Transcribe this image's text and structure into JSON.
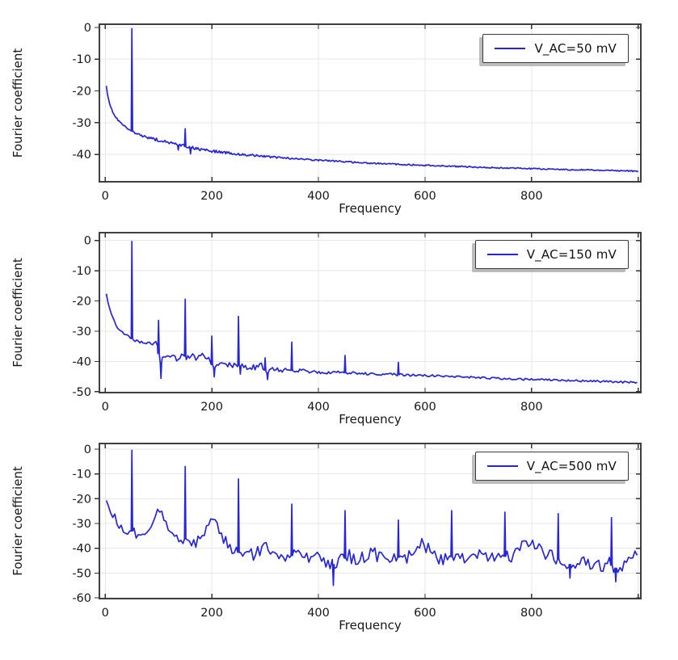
{
  "figure": {
    "background": "#ffffff",
    "ylabel_repeated_per_subplot": true
  },
  "styles": {
    "line_color": "#2626d8",
    "grid_color": "#e7e7e7",
    "frame_color": "#3f3f3f",
    "tick_color": "#333333",
    "text_color": "#171717",
    "legend_border": "#3a3a3a",
    "legend_shadow": "#919191"
  },
  "chart_data": {
    "type": "line",
    "xlabel": "Frequency",
    "ylabel": "Fourier coefficient",
    "xlim": [
      -11,
      1005
    ],
    "xticks": [
      0,
      200,
      400,
      600,
      800
    ],
    "xgrid": [
      0,
      200,
      400,
      600,
      800,
      1000
    ],
    "grid": true,
    "legend_position": "top-right",
    "charts": [
      {
        "legend": "V_AC=50 mV",
        "ylim": [
          -48.6,
          1.0
        ],
        "yticks": [
          0,
          -10,
          -20,
          -30,
          -40
        ],
        "step": 2,
        "seed": 3,
        "baseline": [
          [
            1,
            -17
          ],
          [
            4,
            -21
          ],
          [
            8,
            -24
          ],
          [
            15,
            -27
          ],
          [
            25,
            -29.5
          ],
          [
            35,
            -31
          ],
          [
            48,
            -32.4
          ],
          [
            55,
            -33.2
          ],
          [
            70,
            -34.2
          ],
          [
            85,
            -34.9
          ],
          [
            100,
            -35.5
          ],
          [
            115,
            -36.2
          ],
          [
            130,
            -36.8
          ],
          [
            145,
            -37.3
          ],
          [
            160,
            -37.9
          ],
          [
            175,
            -38.3
          ],
          [
            190,
            -38.7
          ],
          [
            210,
            -39.1
          ],
          [
            240,
            -39.7
          ],
          [
            270,
            -40.2
          ],
          [
            310,
            -40.8
          ],
          [
            360,
            -41.4
          ],
          [
            410,
            -41.9
          ],
          [
            460,
            -42.4
          ],
          [
            520,
            -42.9
          ],
          [
            580,
            -43.3
          ],
          [
            650,
            -43.7
          ],
          [
            720,
            -44.1
          ],
          [
            800,
            -44.5
          ],
          [
            880,
            -44.8
          ],
          [
            950,
            -45.0
          ],
          [
            1001,
            -45.3
          ]
        ],
        "noise_amp": [
          [
            1,
            0.15
          ],
          [
            40,
            0.3
          ],
          [
            70,
            0.3
          ],
          [
            100,
            0.5
          ],
          [
            120,
            0.6
          ],
          [
            150,
            0.6
          ],
          [
            180,
            0.5
          ],
          [
            230,
            0.4
          ],
          [
            300,
            0.3
          ],
          [
            450,
            0.25
          ],
          [
            700,
            0.2
          ],
          [
            1001,
            0.2
          ]
        ],
        "peaks": [
          [
            50,
            -0.4
          ],
          [
            150,
            -31.9
          ]
        ],
        "dips": [
          [
            137,
            -38.6
          ],
          [
            160,
            -39.8
          ]
        ]
      },
      {
        "legend": "V_AC=150 mV",
        "ylim": [
          -50.3,
          2.6
        ],
        "yticks": [
          0,
          -10,
          -20,
          -30,
          -40,
          -50
        ],
        "step": 3,
        "seed": 11,
        "baseline": [
          [
            1,
            -16
          ],
          [
            3,
            -19
          ],
          [
            6,
            -21.5
          ],
          [
            10,
            -23.5
          ],
          [
            15,
            -26
          ],
          [
            22,
            -28.5
          ],
          [
            30,
            -30.2
          ],
          [
            40,
            -31.4
          ],
          [
            48,
            -32.2
          ],
          [
            58,
            -33.3
          ],
          [
            70,
            -33.8
          ],
          [
            85,
            -34.2
          ],
          [
            97,
            -33.8
          ],
          [
            103,
            -41
          ],
          [
            107,
            -39.8
          ],
          [
            115,
            -38.8
          ],
          [
            125,
            -38.4
          ],
          [
            135,
            -38.8
          ],
          [
            145,
            -38.1
          ],
          [
            158,
            -38.5
          ],
          [
            170,
            -38.7
          ],
          [
            182,
            -38.4
          ],
          [
            194,
            -38.6
          ],
          [
            203,
            -42.2
          ],
          [
            212,
            -41.2
          ],
          [
            225,
            -41.6
          ],
          [
            238,
            -41.1
          ],
          [
            252,
            -41.4
          ],
          [
            266,
            -41.7
          ],
          [
            280,
            -41.9
          ],
          [
            294,
            -41.4
          ],
          [
            304,
            -43.8
          ],
          [
            318,
            -42.5
          ],
          [
            332,
            -42.8
          ],
          [
            346,
            -42.9
          ],
          [
            362,
            -43.1
          ],
          [
            385,
            -43.3
          ],
          [
            410,
            -43.5
          ],
          [
            440,
            -43.7
          ],
          [
            475,
            -43.9
          ],
          [
            515,
            -44.1
          ],
          [
            555,
            -44.4
          ],
          [
            600,
            -44.7
          ],
          [
            650,
            -45.0
          ],
          [
            710,
            -45.4
          ],
          [
            770,
            -45.8
          ],
          [
            830,
            -46.1
          ],
          [
            890,
            -46.4
          ],
          [
            950,
            -46.7
          ],
          [
            1001,
            -47.0
          ]
        ],
        "noise_amp": [
          [
            1,
            0.2
          ],
          [
            50,
            0.4
          ],
          [
            90,
            0.6
          ],
          [
            110,
            1.3
          ],
          [
            150,
            1.2
          ],
          [
            200,
            1.1
          ],
          [
            255,
            0.9
          ],
          [
            310,
            1.0
          ],
          [
            365,
            0.7
          ],
          [
            450,
            0.5
          ],
          [
            560,
            0.4
          ],
          [
            700,
            0.35
          ],
          [
            1001,
            0.3
          ]
        ],
        "peaks": [
          [
            50,
            -0.3
          ],
          [
            100,
            -26.4
          ],
          [
            150,
            -19.4
          ],
          [
            200,
            -31.6
          ],
          [
            250,
            -25.1
          ],
          [
            300,
            -38.8
          ],
          [
            350,
            -33.6
          ],
          [
            450,
            -38.0
          ],
          [
            550,
            -40.3
          ]
        ],
        "dips": [
          [
            104.5,
            -45.6
          ],
          [
            204.5,
            -45.1
          ],
          [
            253.5,
            -44.2
          ],
          [
            304.5,
            -46.0
          ]
        ]
      },
      {
        "legend": "V_AC=500 mV",
        "ylim": [
          -60.3,
          2.3
        ],
        "yticks": [
          0,
          -10,
          -20,
          -30,
          -40,
          -50,
          -60
        ],
        "step": 4,
        "seed": 27,
        "baseline": [
          [
            1,
            -19.5
          ],
          [
            5,
            -23
          ],
          [
            10,
            -24.5
          ],
          [
            16,
            -27
          ],
          [
            24,
            -30
          ],
          [
            32,
            -32
          ],
          [
            40,
            -33
          ],
          [
            47,
            -32.5
          ],
          [
            56,
            -34
          ],
          [
            64,
            -35.2
          ],
          [
            72,
            -35.5
          ],
          [
            80,
            -34.5
          ],
          [
            88,
            -30
          ],
          [
            95,
            -25.5
          ],
          [
            100,
            -23.5
          ],
          [
            106,
            -26
          ],
          [
            113,
            -29.5
          ],
          [
            121,
            -32.5
          ],
          [
            130,
            -35.5
          ],
          [
            140,
            -36.5
          ],
          [
            150,
            -36.2
          ],
          [
            160,
            -37
          ],
          [
            170,
            -37.5
          ],
          [
            180,
            -36.2
          ],
          [
            190,
            -32
          ],
          [
            200,
            -28.5
          ],
          [
            208,
            -31
          ],
          [
            217,
            -34.5
          ],
          [
            226,
            -37.5
          ],
          [
            236,
            -40.5
          ],
          [
            246,
            -41.5
          ],
          [
            258,
            -42
          ],
          [
            270,
            -42.5
          ],
          [
            282,
            -42.8
          ],
          [
            292,
            -40.5
          ],
          [
            300,
            -37
          ],
          [
            308,
            -39.5
          ],
          [
            318,
            -41.5
          ],
          [
            328,
            -43
          ],
          [
            340,
            -43.5
          ],
          [
            352,
            -42.8
          ],
          [
            365,
            -43.2
          ],
          [
            378,
            -44
          ],
          [
            392,
            -43.5
          ],
          [
            406,
            -44.2
          ],
          [
            418,
            -45.5
          ],
          [
            432,
            -47
          ],
          [
            444,
            -44.8
          ],
          [
            456,
            -43.2
          ],
          [
            470,
            -44
          ],
          [
            484,
            -43.4
          ],
          [
            496,
            -41.8
          ],
          [
            508,
            -42.6
          ],
          [
            522,
            -44.4
          ],
          [
            536,
            -44.8
          ],
          [
            550,
            -43.6
          ],
          [
            564,
            -44
          ],
          [
            578,
            -41.6
          ],
          [
            592,
            -38.8
          ],
          [
            604,
            -39.6
          ],
          [
            618,
            -42.8
          ],
          [
            632,
            -44.4
          ],
          [
            648,
            -43.2
          ],
          [
            662,
            -44.4
          ],
          [
            676,
            -44
          ],
          [
            692,
            -43.4
          ],
          [
            708,
            -42.6
          ],
          [
            724,
            -43.4
          ],
          [
            740,
            -43
          ],
          [
            756,
            -43.4
          ],
          [
            770,
            -42
          ],
          [
            784,
            -39.6
          ],
          [
            798,
            -36.8
          ],
          [
            810,
            -38.4
          ],
          [
            824,
            -42
          ],
          [
            840,
            -44
          ],
          [
            856,
            -44.6
          ],
          [
            870,
            -46.6
          ],
          [
            886,
            -45.8
          ],
          [
            900,
            -45.6
          ],
          [
            916,
            -46.4
          ],
          [
            930,
            -47
          ],
          [
            944,
            -46
          ],
          [
            958,
            -48
          ],
          [
            972,
            -47
          ],
          [
            986,
            -44.2
          ],
          [
            1001,
            -41
          ]
        ],
        "noise_amp": [
          [
            1,
            1.0
          ],
          [
            30,
            2.2
          ],
          [
            60,
            2.6
          ],
          [
            95,
            1.6
          ],
          [
            130,
            2.4
          ],
          [
            185,
            2.0
          ],
          [
            250,
            2.6
          ],
          [
            320,
            2.6
          ],
          [
            420,
            3.0
          ],
          [
            520,
            2.9
          ],
          [
            620,
            2.8
          ],
          [
            720,
            2.6
          ],
          [
            820,
            2.9
          ],
          [
            920,
            3.0
          ],
          [
            985,
            2.0
          ],
          [
            1001,
            1.2
          ]
        ],
        "peaks": [
          [
            50,
            -0.4
          ],
          [
            150,
            -7.0
          ],
          [
            250,
            -12.0
          ],
          [
            350,
            -22.2
          ],
          [
            450,
            -24.8
          ],
          [
            550,
            -28.6
          ],
          [
            650,
            -24.8
          ],
          [
            750,
            -25.4
          ],
          [
            850,
            -26.0
          ],
          [
            950,
            -27.6
          ]
        ],
        "dips": [
          [
            428,
            -55
          ],
          [
            872,
            -52
          ],
          [
            958,
            -53.5
          ]
        ]
      }
    ]
  }
}
